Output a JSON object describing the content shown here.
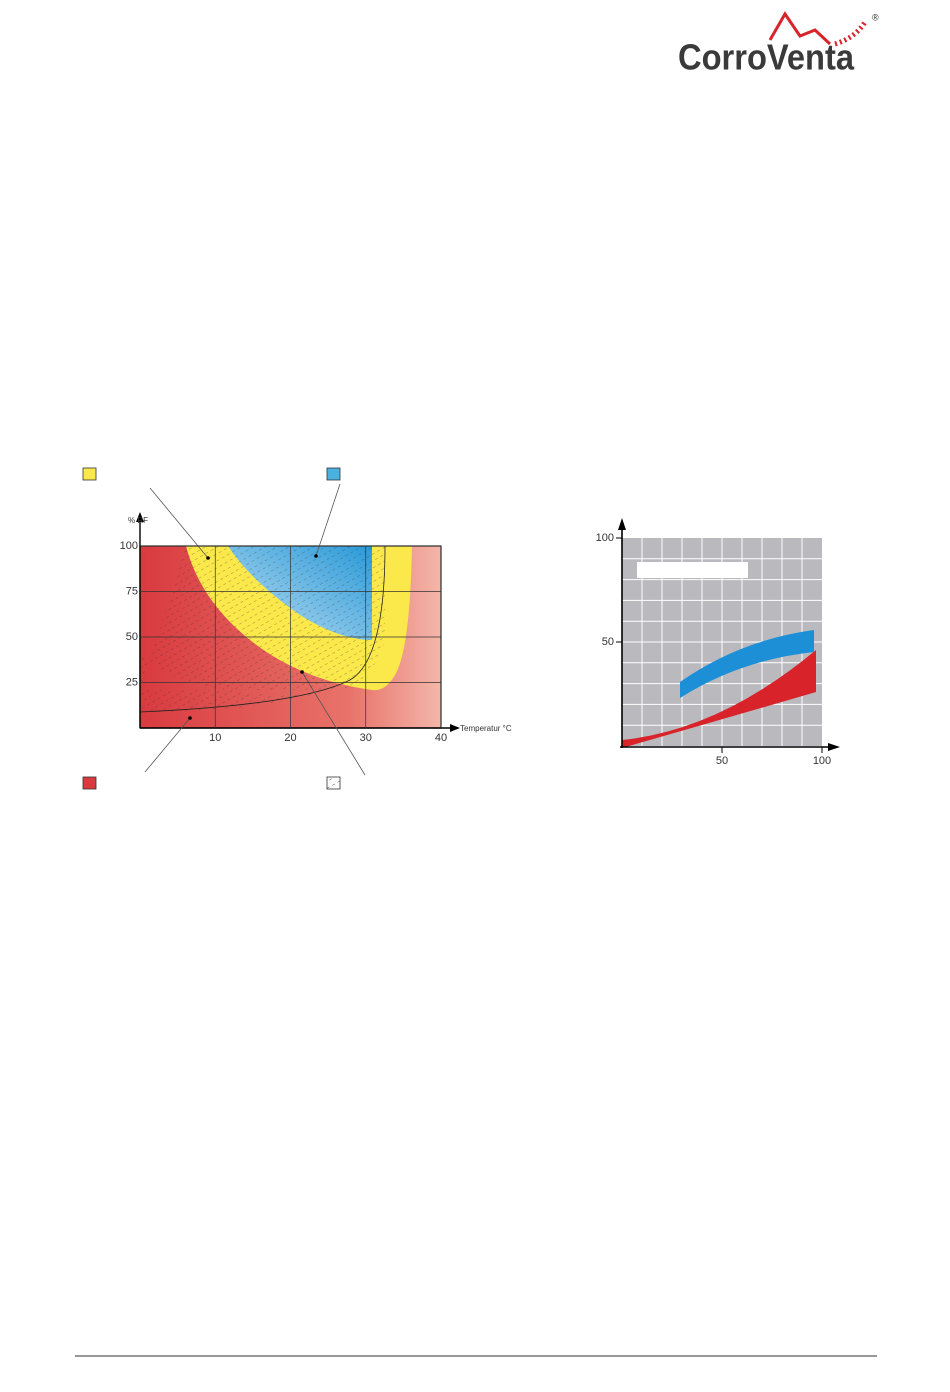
{
  "header": {
    "logo": "CorroVenta",
    "registered": "®"
  },
  "figure1": {
    "y_label": "% RF",
    "x_label": "Temperatur °C",
    "xlim": [
      0,
      40
    ],
    "ylim": [
      0,
      100
    ],
    "xticks": [
      10,
      20,
      30,
      40
    ],
    "yticks": [
      25,
      50,
      75,
      100
    ]
  },
  "figure2": {
    "xlim": [
      0,
      100
    ],
    "ylim": [
      0,
      100
    ],
    "xticks": [
      50,
      100
    ],
    "yticks": [
      50,
      100
    ]
  }
}
